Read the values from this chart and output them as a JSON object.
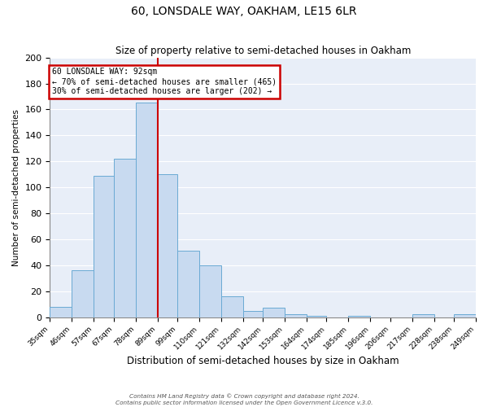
{
  "title": "60, LONSDALE WAY, OAKHAM, LE15 6LR",
  "subtitle": "Size of property relative to semi-detached houses in Oakham",
  "xlabel": "Distribution of semi-detached houses by size in Oakham",
  "ylabel": "Number of semi-detached properties",
  "bar_color": "#c8daf0",
  "bar_edge_color": "#6aaad4",
  "fig_bg_color": "#ffffff",
  "axes_bg_color": "#e8eef8",
  "grid_color": "#ffffff",
  "property_line_color": "#cc0000",
  "annotation_box_edge_color": "#cc0000",
  "bin_edges": [
    35,
    46,
    57,
    67,
    78,
    89,
    99,
    110,
    121,
    132,
    142,
    153,
    164,
    174,
    185,
    196,
    206,
    217,
    228,
    238,
    249
  ],
  "bin_labels": [
    "35sqm",
    "46sqm",
    "57sqm",
    "67sqm",
    "78sqm",
    "89sqm",
    "99sqm",
    "110sqm",
    "121sqm",
    "132sqm",
    "142sqm",
    "153sqm",
    "164sqm",
    "174sqm",
    "185sqm",
    "196sqm",
    "206sqm",
    "217sqm",
    "228sqm",
    "238sqm",
    "249sqm"
  ],
  "counts": [
    8,
    36,
    109,
    122,
    165,
    110,
    51,
    40,
    16,
    5,
    7,
    2,
    1,
    0,
    1,
    0,
    0,
    2,
    0,
    2
  ],
  "ylim": [
    0,
    200
  ],
  "yticks": [
    0,
    20,
    40,
    60,
    80,
    100,
    120,
    140,
    160,
    180,
    200
  ],
  "property_line_x": 89,
  "annotation_line1": "60 LONSDALE WAY: 92sqm",
  "annotation_line2": "← 70% of semi-detached houses are smaller (465)",
  "annotation_line3": "30% of semi-detached houses are larger (202) →",
  "footer1": "Contains HM Land Registry data © Crown copyright and database right 2024.",
  "footer2": "Contains public sector information licensed under the Open Government Licence v.3.0."
}
